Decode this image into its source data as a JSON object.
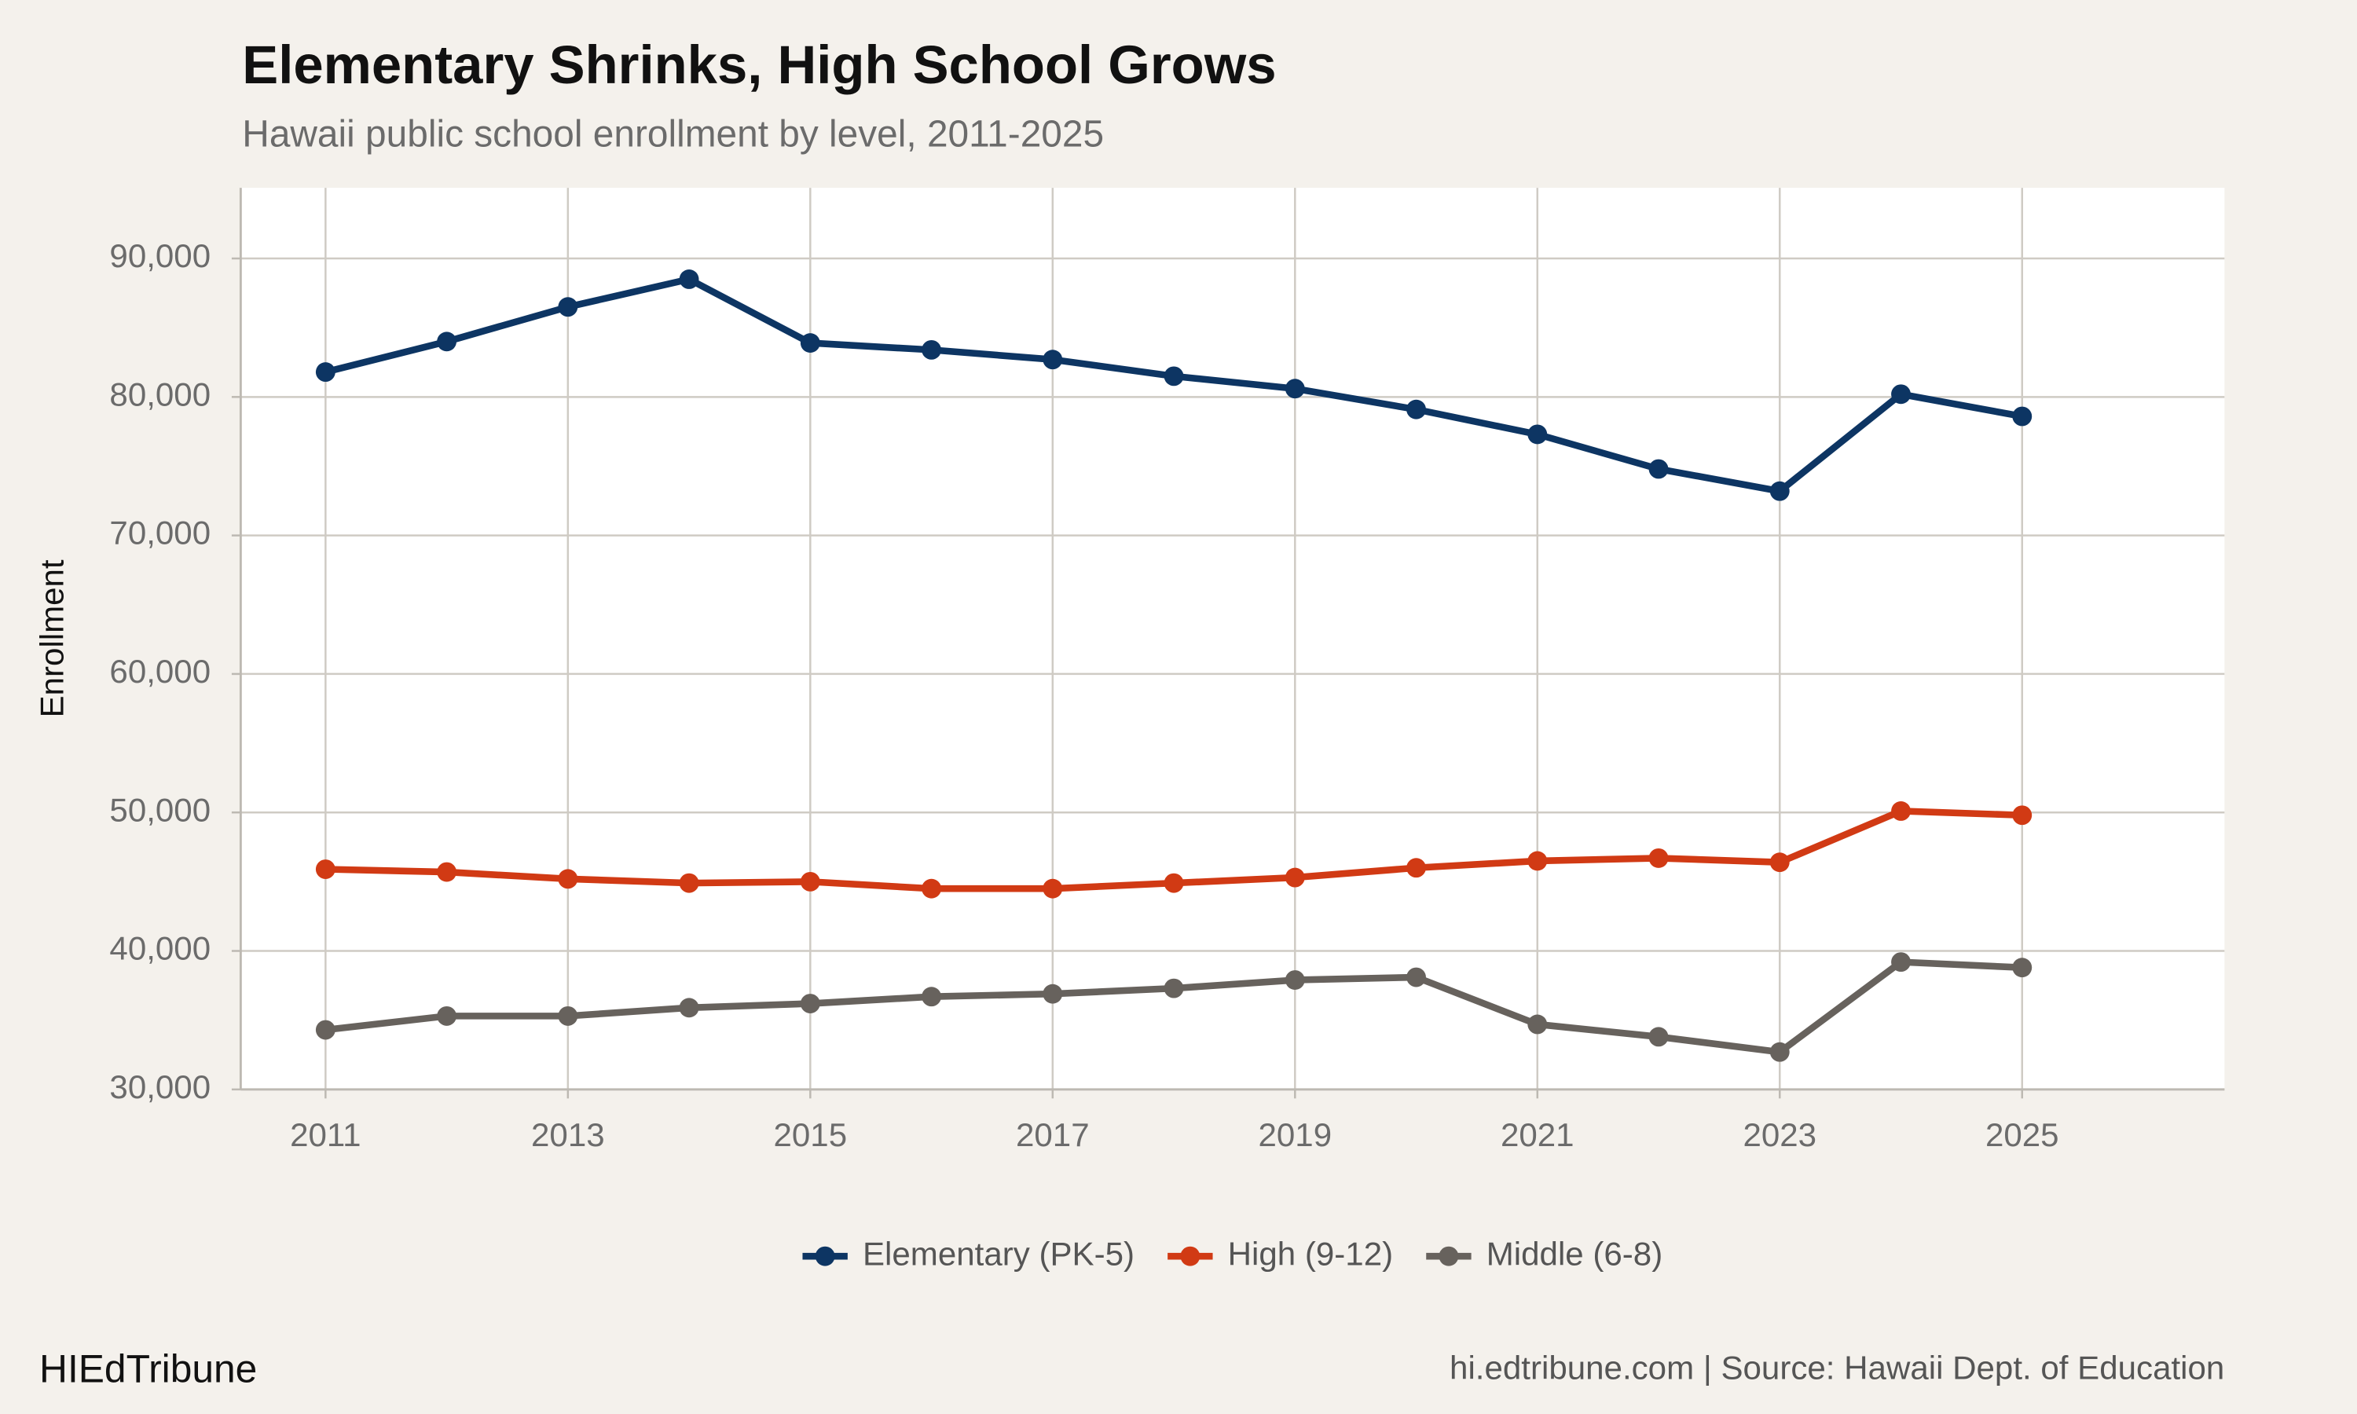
{
  "chart_data": {
    "type": "line",
    "title": "Elementary Shrinks, High School Grows",
    "subtitle": "Hawaii public school enrollment by level, 2011-2025",
    "y_label": "Enrollment",
    "x": [
      2011,
      2012,
      2013,
      2014,
      2015,
      2016,
      2017,
      2018,
      2019,
      2020,
      2021,
      2022,
      2023,
      2024,
      2025
    ],
    "series": [
      {
        "name": "Elementary (PK-5)",
        "color": "#0d3563",
        "values": [
          81800,
          84000,
          86500,
          88500,
          83900,
          83400,
          82700,
          81500,
          80600,
          79100,
          77300,
          74800,
          73200,
          80200,
          78600
        ]
      },
      {
        "name": "High (9-12)",
        "color": "#d13a14",
        "values": [
          45900,
          45700,
          45200,
          44900,
          45000,
          44500,
          44500,
          44900,
          45300,
          46000,
          46500,
          46700,
          46400,
          50100,
          49800
        ]
      },
      {
        "name": "Middle (6-8)",
        "color": "#67625d",
        "values": [
          34300,
          35300,
          35300,
          35900,
          36200,
          36700,
          36900,
          37300,
          37900,
          38100,
          34700,
          33800,
          32700,
          39200,
          38800
        ]
      }
    ],
    "xlim": [
      2010.3,
      2026.67
    ],
    "ylim": [
      30000,
      95100
    ],
    "xticks": [
      2011,
      2013,
      2015,
      2017,
      2019,
      2021,
      2023,
      2025
    ],
    "yticks": [
      {
        "value": 30000,
        "label": "30,000"
      },
      {
        "value": 40000,
        "label": "40,000"
      },
      {
        "value": 50000,
        "label": "50,000"
      },
      {
        "value": 60000,
        "label": "60,000"
      },
      {
        "value": 70000,
        "label": "70,000"
      },
      {
        "value": 80000,
        "label": "80,000"
      },
      {
        "value": 90000,
        "label": "90,000"
      }
    ],
    "grid": true,
    "legend": "bottom",
    "brand": "HIEdTribune",
    "source": "hi.edtribune.com | Source: Hawaii Dept. of Education"
  }
}
